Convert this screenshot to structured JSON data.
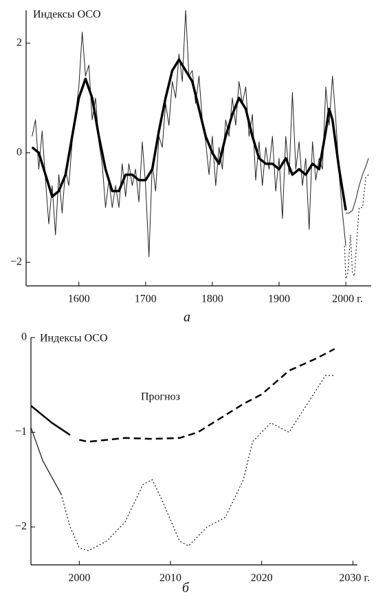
{
  "chart_data": [
    {
      "type": "line",
      "ylabel": "Индексы ОСО",
      "caption": "а",
      "xlim": [
        1521,
        2038
      ],
      "ylim": [
        -2.43,
        2.6
      ],
      "xticks": [
        1600,
        1700,
        1800,
        1900,
        {
          "value": 2000,
          "label": "2000 г."
        }
      ],
      "yticks": [
        2,
        0,
        {
          "value": -2,
          "label": "−2"
        }
      ],
      "series": [
        {
          "color": "#222",
          "width": 1,
          "style": "solid",
          "x": [
            1530,
            1535,
            1540,
            1545,
            1550,
            1555,
            1560,
            1565,
            1570,
            1575,
            1580,
            1585,
            1590,
            1595,
            1600,
            1605,
            1610,
            1615,
            1620,
            1625,
            1630,
            1635,
            1640,
            1645,
            1650,
            1655,
            1660,
            1665,
            1670,
            1675,
            1680,
            1685,
            1690,
            1695,
            1700,
            1705,
            1710,
            1715,
            1720,
            1725,
            1730,
            1735,
            1740,
            1745,
            1750,
            1755,
            1760,
            1765,
            1770,
            1775,
            1780,
            1785,
            1790,
            1795,
            1800,
            1805,
            1810,
            1815,
            1820,
            1825,
            1830,
            1835,
            1840,
            1845,
            1850,
            1855,
            1860,
            1865,
            1870,
            1875,
            1880,
            1885,
            1890,
            1895,
            1900,
            1905,
            1910,
            1915,
            1920,
            1925,
            1930,
            1935,
            1940,
            1945,
            1950,
            1955,
            1960,
            1965,
            1970,
            1975,
            1980,
            1985,
            1990,
            1995,
            2000
          ],
          "values": [
            0.3,
            0.6,
            -0.3,
            0.4,
            -0.5,
            -1.3,
            -0.6,
            -1.5,
            -0.4,
            -1.1,
            -0.3,
            -0.6,
            0.2,
            0.7,
            1.2,
            2.2,
            1.4,
            1.6,
            0.6,
            1.0,
            0.2,
            -0.2,
            -1.0,
            -0.5,
            -1.0,
            -0.6,
            -1.0,
            -0.2,
            -0.8,
            -0.2,
            -0.6,
            -0.3,
            -0.9,
            0.2,
            -0.6,
            -1.9,
            -0.2,
            -0.7,
            0.3,
            0.1,
            0.9,
            0.5,
            1.3,
            1.0,
            1.8,
            1.3,
            2.6,
            1.4,
            1.5,
            0.9,
            1.4,
            0.6,
            0.2,
            -0.4,
            0.3,
            -0.6,
            0.1,
            -0.3,
            0.6,
            0.3,
            1.0,
            0.5,
            1.3,
            0.9,
            1.2,
            0.3,
            0.7,
            -0.5,
            0.2,
            -0.6,
            0.1,
            -0.3,
            0.3,
            -0.7,
            -0.1,
            -1.2,
            0.3,
            -0.4,
            1.1,
            -0.3,
            0.2,
            -0.6,
            -0.1,
            -1.4,
            0.2,
            -0.5,
            -0.1,
            -0.3,
            1.2,
            0.5,
            1.4,
            0.6,
            -0.4,
            -1.1,
            -1.7
          ]
        },
        {
          "color": "#000",
          "width": 3.5,
          "style": "solid",
          "x": [
            1530,
            1540,
            1550,
            1560,
            1570,
            1580,
            1590,
            1600,
            1610,
            1620,
            1630,
            1640,
            1650,
            1660,
            1670,
            1680,
            1690,
            1700,
            1710,
            1720,
            1730,
            1740,
            1750,
            1760,
            1770,
            1780,
            1790,
            1800,
            1810,
            1820,
            1830,
            1840,
            1850,
            1860,
            1870,
            1880,
            1890,
            1900,
            1910,
            1920,
            1930,
            1940,
            1950,
            1960,
            1970,
            1975,
            1980,
            1990,
            2000
          ],
          "values": [
            0.1,
            0.0,
            -0.4,
            -0.8,
            -0.7,
            -0.4,
            0.3,
            1.0,
            1.35,
            1.0,
            0.3,
            -0.3,
            -0.7,
            -0.7,
            -0.4,
            -0.4,
            -0.5,
            -0.5,
            -0.3,
            0.4,
            1.0,
            1.5,
            1.7,
            1.5,
            1.3,
            0.8,
            0.3,
            0.0,
            -0.2,
            0.3,
            0.7,
            1.0,
            0.8,
            0.3,
            -0.1,
            -0.2,
            -0.2,
            -0.3,
            -0.1,
            -0.4,
            -0.3,
            -0.4,
            -0.2,
            -0.3,
            0.4,
            0.8,
            0.6,
            -0.3,
            -1.05
          ]
        },
        {
          "color": "#222",
          "width": 1,
          "style": "solid",
          "x": [
            2000,
            2005,
            2010,
            2015,
            2020,
            2025,
            2030,
            2034
          ],
          "values": [
            -1.1,
            -1.1,
            -1.05,
            -0.85,
            -0.6,
            -0.4,
            -0.25,
            -0.1
          ]
        },
        {
          "color": "#222",
          "width": 1.2,
          "style": "dotted",
          "x": [
            1998,
            2000,
            2003,
            2007,
            2010,
            2013,
            2017,
            2020,
            2025,
            2030,
            2034
          ],
          "values": [
            -1.7,
            -2.3,
            -2.2,
            -1.5,
            -2.2,
            -2.25,
            -1.5,
            -1.0,
            -1.0,
            -0.45,
            -0.4
          ]
        }
      ]
    },
    {
      "type": "line",
      "ylabel": "Индексы ОСО",
      "caption": "б",
      "annotation": "Прогноз",
      "xlim": [
        1994.7,
        2030.5
      ],
      "ylim": [
        -2.4,
        0
      ],
      "xticks": [
        2000,
        2010,
        2020,
        {
          "value": 2030,
          "label": "2030 г."
        }
      ],
      "yticks": [
        0,
        {
          "value": -1,
          "label": "−1"
        },
        {
          "value": -2,
          "label": "−2"
        }
      ],
      "series": [
        {
          "color": "#000",
          "width": 2.5,
          "style": "solid",
          "x": [
            1994.7,
            1997,
            1999
          ],
          "values": [
            -0.72,
            -0.9,
            -1.03
          ]
        },
        {
          "color": "#111",
          "width": 1.2,
          "style": "solid",
          "x": [
            1994.7,
            1996,
            1998
          ],
          "values": [
            -0.95,
            -1.3,
            -1.65
          ]
        },
        {
          "color": "#000",
          "width": 2.5,
          "style": "dashed",
          "x": [
            2000,
            2001,
            2005,
            2008,
            2011,
            2013,
            2016,
            2018,
            2020,
            2023,
            2026,
            2028
          ],
          "values": [
            -1.08,
            -1.1,
            -1.06,
            -1.07,
            -1.06,
            -1.0,
            -0.82,
            -0.7,
            -0.6,
            -0.35,
            -0.22,
            -0.12
          ]
        },
        {
          "color": "#111",
          "width": 1.2,
          "style": "dotted",
          "x": [
            1998,
            1999,
            2000,
            2001,
            2003,
            2005,
            2007,
            2008,
            2009,
            2011,
            2012,
            2014,
            2016,
            2018,
            2019,
            2021,
            2023,
            2025,
            2027,
            2028
          ],
          "values": [
            -1.65,
            -2.0,
            -2.22,
            -2.25,
            -2.15,
            -1.95,
            -1.55,
            -1.5,
            -1.7,
            -2.15,
            -2.2,
            -2.0,
            -1.9,
            -1.5,
            -1.1,
            -0.9,
            -1.0,
            -0.7,
            -0.4,
            -0.4
          ]
        }
      ]
    }
  ]
}
